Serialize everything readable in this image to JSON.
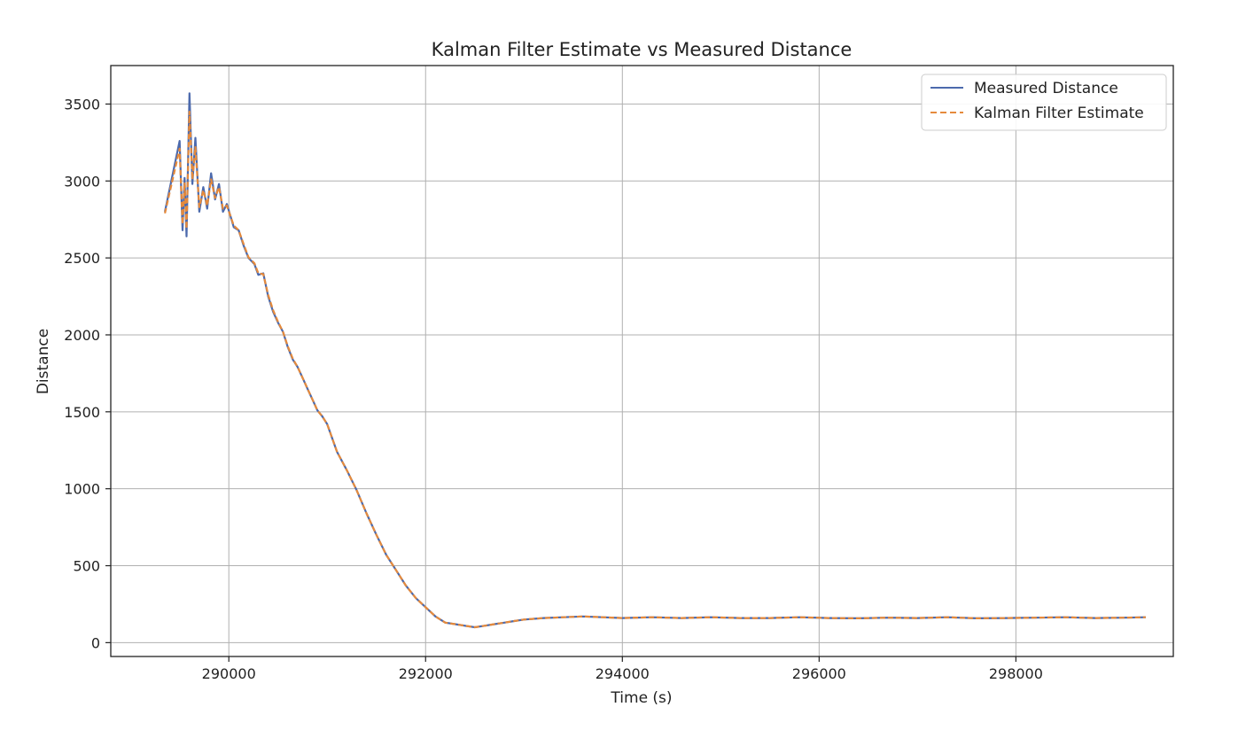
{
  "chart_data": {
    "type": "line",
    "title": "Kalman Filter Estimate vs Measured Distance",
    "xlabel": "Time (s)",
    "ylabel": "Distance",
    "xlim": [
      288800,
      299600
    ],
    "ylim": [
      -90,
      3750
    ],
    "grid": true,
    "legend_position": "top-right",
    "x_ticks": [
      290000,
      292000,
      294000,
      296000,
      298000
    ],
    "x_tick_labels": [
      "290000",
      "292000",
      "294000",
      "296000",
      "298000"
    ],
    "y_ticks": [
      0,
      500,
      1000,
      1500,
      2000,
      2500,
      3000,
      3500
    ],
    "y_tick_labels": [
      "0",
      "500",
      "1000",
      "1500",
      "2000",
      "2500",
      "3000",
      "3500"
    ],
    "x": [
      289350,
      289500,
      289530,
      289550,
      289570,
      289600,
      289630,
      289660,
      289700,
      289740,
      289780,
      289820,
      289860,
      289900,
      289940,
      289980,
      290050,
      290100,
      290150,
      290200,
      290260,
      290300,
      290350,
      290400,
      290450,
      290500,
      290550,
      290600,
      290650,
      290700,
      290750,
      290800,
      290850,
      290900,
      290950,
      291000,
      291100,
      291200,
      291300,
      291400,
      291500,
      291600,
      291700,
      291800,
      291900,
      292000,
      292100,
      292200,
      292300,
      292400,
      292500,
      292600,
      292700,
      292800,
      292900,
      293000,
      293200,
      293400,
      293600,
      293800,
      294000,
      294300,
      294600,
      294900,
      295200,
      295500,
      295800,
      296100,
      296400,
      296700,
      297000,
      297300,
      297600,
      297900,
      298200,
      298500,
      298800,
      299100,
      299320
    ],
    "series": [
      {
        "name": "Measured Distance",
        "color": "#4c6aad",
        "style": "solid",
        "values": [
          2800,
          3260,
          2680,
          3020,
          2640,
          3570,
          2980,
          3280,
          2800,
          2960,
          2820,
          3050,
          2880,
          2980,
          2800,
          2850,
          2700,
          2680,
          2580,
          2500,
          2460,
          2390,
          2400,
          2250,
          2150,
          2080,
          2020,
          1920,
          1840,
          1790,
          1720,
          1650,
          1580,
          1510,
          1470,
          1420,
          1240,
          1120,
          990,
          840,
          700,
          570,
          470,
          370,
          290,
          230,
          170,
          130,
          120,
          110,
          100,
          110,
          120,
          130,
          140,
          150,
          160,
          165,
          170,
          165,
          160,
          165,
          160,
          165,
          160,
          160,
          165,
          160,
          158,
          162,
          160,
          165,
          158,
          160,
          162,
          165,
          160,
          162,
          165
        ]
      },
      {
        "name": "Kalman Filter Estimate",
        "color": "#e58a3c",
        "style": "dashed",
        "values": [
          2790,
          3210,
          2720,
          2990,
          2690,
          3450,
          3010,
          3220,
          2830,
          2940,
          2840,
          3010,
          2890,
          2960,
          2820,
          2840,
          2710,
          2680,
          2590,
          2505,
          2465,
          2400,
          2395,
          2260,
          2160,
          2085,
          2020,
          1925,
          1845,
          1790,
          1720,
          1650,
          1580,
          1510,
          1470,
          1420,
          1240,
          1120,
          990,
          840,
          700,
          570,
          470,
          370,
          290,
          230,
          170,
          130,
          120,
          110,
          100,
          110,
          120,
          130,
          140,
          150,
          160,
          165,
          170,
          165,
          160,
          165,
          160,
          165,
          160,
          160,
          165,
          160,
          158,
          162,
          160,
          165,
          158,
          160,
          162,
          165,
          160,
          162,
          165
        ]
      }
    ]
  }
}
